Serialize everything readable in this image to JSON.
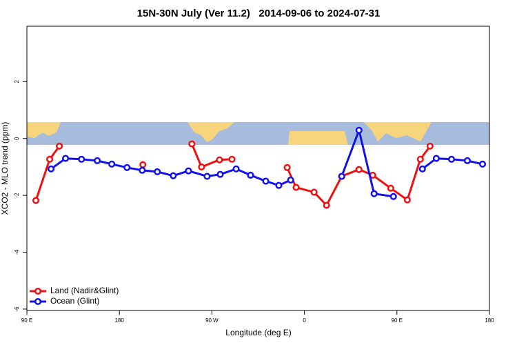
{
  "chart_data": {
    "type": "line",
    "title": "15N-30N July (Ver 11.2)   2014-09-06 to 2024-07-31",
    "x_label": "Longitude (deg E)",
    "y_label": "XCO2 - MLO trend (ppm)",
    "xlim": [
      90,
      540
    ],
    "xticks": [
      {
        "value": 90,
        "label": "90 E"
      },
      180,
      {
        "value": 270,
        "label": "90 W"
      },
      {
        "value": 360,
        "label": "0"
      },
      {
        "value": 450,
        "label": "90 E"
      },
      {
        "value": 540,
        "label": "180"
      }
    ],
    "ylim": [
      -6.05,
      3.95
    ],
    "yticks": [
      2,
      0,
      -2,
      -4,
      -6
    ],
    "legend": "bottom-left",
    "series": [
      {
        "name": "Land (Nadir&Glint)",
        "color": "#ee1111",
        "x": [
          98.7,
          112.2,
          121.6,
          null,
          202.8,
          null,
          250.5,
          259.9,
          277.4,
          289.5,
          null,
          343.2,
          351.9,
          369.4,
          381.5,
          396.3,
          413.1,
          426.5,
          444.0,
          460.1,
          472.8,
          482.2
        ],
        "values": [
          -2.18,
          -0.73,
          -0.27,
          null,
          -0.92,
          null,
          -0.19,
          -1.0,
          -0.75,
          -0.73,
          null,
          -1.02,
          -1.72,
          -1.89,
          -2.35,
          -1.33,
          -1.09,
          -1.29,
          -1.75,
          -2.16,
          -0.73,
          -0.27
        ]
      },
      {
        "name": "Ocean (Glint)",
        "color": "#1111ee",
        "x": [
          113.5,
          127.6,
          143.1,
          158.5,
          172.6,
          187.4,
          202.2,
          216.9,
          232.4,
          247.2,
          265.3,
          278.1,
          293.6,
          307.6,
          322.4,
          335.1,
          346.6,
          null,
          396.3,
          413.1,
          427.8,
          446.6,
          null,
          474.8,
          488.3,
          503.1,
          518.5,
          533.3
        ],
        "values": [
          -1.07,
          -0.7,
          -0.73,
          -0.78,
          -0.9,
          -1.02,
          -1.12,
          -1.17,
          -1.31,
          -1.14,
          -1.33,
          -1.26,
          -1.07,
          -1.29,
          -1.5,
          -1.65,
          -1.46,
          null,
          -1.33,
          0.29,
          -1.94,
          -2.04,
          null,
          -1.07,
          -0.7,
          -0.73,
          -0.78,
          -0.9
        ]
      }
    ]
  }
}
